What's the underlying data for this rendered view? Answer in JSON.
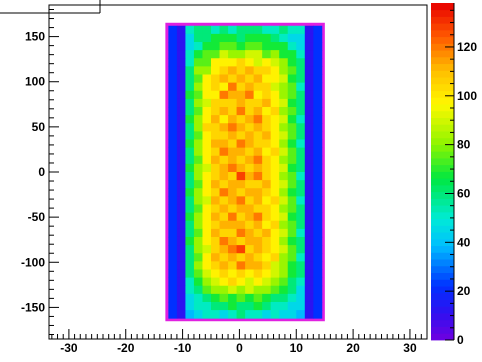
{
  "chart_data": {
    "type": "heatmap",
    "title": "",
    "xlabel": "",
    "ylabel": "",
    "xlim": [
      -33.5,
      33.0
    ],
    "ylim": [
      -185,
      185
    ],
    "x_ticks": [
      -30,
      -20,
      -10,
      0,
      10,
      20,
      30
    ],
    "x_tick_labels": [
      "-30",
      "-20",
      "-10",
      "0",
      "10",
      "20",
      "30"
    ],
    "y_ticks": [
      -150,
      -100,
      -50,
      0,
      50,
      100,
      150
    ],
    "y_tick_labels": [
      "-150",
      "-100",
      "-50",
      "0",
      "50",
      "100",
      "150"
    ],
    "x_bins": [
      -12.5,
      14.5,
      18
    ],
    "y_bins": [
      -162,
      162,
      36
    ],
    "color_scale": {
      "min": 0,
      "max": 138,
      "ticks": [
        0,
        20,
        40,
        60,
        80,
        100,
        120
      ],
      "tick_labels": [
        "0",
        "20",
        "40",
        "60",
        "80",
        "100",
        "120"
      ]
    },
    "values": [
      [
        22,
        12,
        52,
        60,
        60,
        52,
        60,
        52,
        60,
        60,
        60,
        52,
        52,
        60,
        52,
        52,
        12,
        22
      ],
      [
        22,
        12,
        45,
        60,
        60,
        68,
        68,
        68,
        60,
        68,
        68,
        68,
        60,
        52,
        45,
        45,
        12,
        22
      ],
      [
        22,
        12,
        45,
        52,
        68,
        68,
        75,
        75,
        68,
        75,
        75,
        68,
        68,
        68,
        52,
        45,
        12,
        22
      ],
      [
        22,
        12,
        52,
        68,
        75,
        75,
        90,
        82,
        82,
        90,
        90,
        75,
        82,
        68,
        68,
        52,
        12,
        22
      ],
      [
        22,
        12,
        52,
        75,
        75,
        98,
        98,
        98,
        105,
        98,
        90,
        98,
        90,
        82,
        68,
        60,
        12,
        22
      ],
      [
        22,
        12,
        60,
        82,
        82,
        98,
        105,
        112,
        105,
        112,
        105,
        105,
        98,
        82,
        75,
        60,
        12,
        22
      ],
      [
        22,
        12,
        60,
        75,
        98,
        105,
        112,
        105,
        112,
        105,
        112,
        98,
        98,
        90,
        68,
        60,
        12,
        22
      ],
      [
        22,
        12,
        60,
        82,
        98,
        105,
        98,
        120,
        105,
        112,
        105,
        105,
        90,
        82,
        75,
        52,
        12,
        22
      ],
      [
        22,
        12,
        68,
        75,
        98,
        98,
        120,
        112,
        112,
        120,
        98,
        105,
        98,
        82,
        75,
        60,
        12,
        22
      ],
      [
        22,
        12,
        60,
        82,
        90,
        105,
        105,
        105,
        112,
        105,
        105,
        112,
        98,
        90,
        68,
        60,
        12,
        22
      ],
      [
        22,
        12,
        60,
        75,
        98,
        105,
        112,
        105,
        120,
        105,
        112,
        98,
        105,
        82,
        75,
        60,
        12,
        22
      ],
      [
        22,
        12,
        68,
        82,
        98,
        112,
        98,
        112,
        105,
        112,
        120,
        105,
        98,
        90,
        68,
        52,
        12,
        22
      ],
      [
        22,
        12,
        60,
        82,
        105,
        105,
        112,
        120,
        112,
        105,
        112,
        105,
        98,
        82,
        75,
        60,
        12,
        22
      ],
      [
        22,
        12,
        60,
        75,
        98,
        105,
        105,
        112,
        105,
        112,
        105,
        112,
        98,
        90,
        75,
        60,
        12,
        22
      ],
      [
        22,
        12,
        68,
        82,
        98,
        112,
        112,
        105,
        120,
        112,
        105,
        105,
        98,
        82,
        68,
        52,
        12,
        22
      ],
      [
        22,
        12,
        60,
        82,
        98,
        105,
        120,
        112,
        112,
        105,
        112,
        98,
        105,
        90,
        75,
        60,
        12,
        22
      ],
      [
        22,
        12,
        60,
        75,
        98,
        112,
        105,
        112,
        105,
        112,
        120,
        105,
        98,
        82,
        75,
        60,
        12,
        22
      ],
      [
        22,
        12,
        68,
        82,
        90,
        105,
        112,
        120,
        112,
        105,
        112,
        105,
        98,
        90,
        68,
        60,
        12,
        22
      ],
      [
        22,
        12,
        60,
        82,
        98,
        105,
        112,
        105,
        128,
        112,
        120,
        105,
        98,
        82,
        75,
        52,
        12,
        22
      ],
      [
        22,
        12,
        60,
        75,
        98,
        112,
        105,
        112,
        112,
        105,
        105,
        112,
        98,
        90,
        75,
        60,
        12,
        22
      ],
      [
        22,
        12,
        68,
        82,
        98,
        105,
        120,
        112,
        105,
        112,
        112,
        105,
        98,
        82,
        68,
        60,
        12,
        22
      ],
      [
        22,
        12,
        60,
        82,
        90,
        112,
        105,
        112,
        120,
        105,
        112,
        98,
        105,
        90,
        75,
        52,
        12,
        22
      ],
      [
        22,
        12,
        60,
        75,
        98,
        105,
        112,
        105,
        112,
        112,
        105,
        105,
        98,
        82,
        75,
        60,
        12,
        22
      ],
      [
        22,
        12,
        68,
        82,
        98,
        112,
        105,
        120,
        105,
        112,
        120,
        105,
        98,
        90,
        68,
        60,
        12,
        22
      ],
      [
        22,
        12,
        60,
        82,
        98,
        105,
        112,
        112,
        112,
        105,
        112,
        98,
        105,
        82,
        75,
        60,
        12,
        22
      ],
      [
        22,
        12,
        60,
        75,
        98,
        112,
        105,
        105,
        120,
        112,
        105,
        112,
        98,
        90,
        75,
        52,
        12,
        22
      ],
      [
        22,
        12,
        68,
        82,
        98,
        105,
        120,
        112,
        105,
        112,
        112,
        105,
        98,
        82,
        68,
        60,
        12,
        22
      ],
      [
        22,
        12,
        60,
        82,
        90,
        105,
        112,
        120,
        128,
        105,
        112,
        105,
        98,
        90,
        75,
        60,
        12,
        22
      ],
      [
        22,
        12,
        60,
        75,
        98,
        112,
        105,
        112,
        105,
        112,
        105,
        98,
        105,
        82,
        75,
        52,
        12,
        22
      ],
      [
        22,
        12,
        60,
        82,
        98,
        105,
        112,
        105,
        120,
        112,
        112,
        105,
        90,
        82,
        68,
        60,
        12,
        22
      ],
      [
        22,
        12,
        60,
        75,
        90,
        98,
        105,
        98,
        105,
        98,
        105,
        98,
        90,
        82,
        68,
        60,
        12,
        22
      ],
      [
        22,
        12,
        52,
        68,
        82,
        90,
        98,
        105,
        98,
        90,
        98,
        90,
        82,
        75,
        60,
        52,
        12,
        22
      ],
      [
        22,
        12,
        52,
        60,
        75,
        82,
        82,
        90,
        82,
        90,
        82,
        82,
        75,
        68,
        60,
        45,
        12,
        22
      ],
      [
        22,
        12,
        45,
        52,
        60,
        68,
        75,
        68,
        75,
        68,
        75,
        68,
        60,
        60,
        52,
        45,
        12,
        22
      ],
      [
        22,
        12,
        45,
        52,
        52,
        60,
        60,
        68,
        60,
        60,
        68,
        60,
        52,
        52,
        45,
        45,
        12,
        22
      ],
      [
        22,
        12,
        38,
        45,
        52,
        52,
        45,
        52,
        60,
        52,
        52,
        45,
        52,
        45,
        45,
        38,
        12,
        22
      ]
    ]
  }
}
